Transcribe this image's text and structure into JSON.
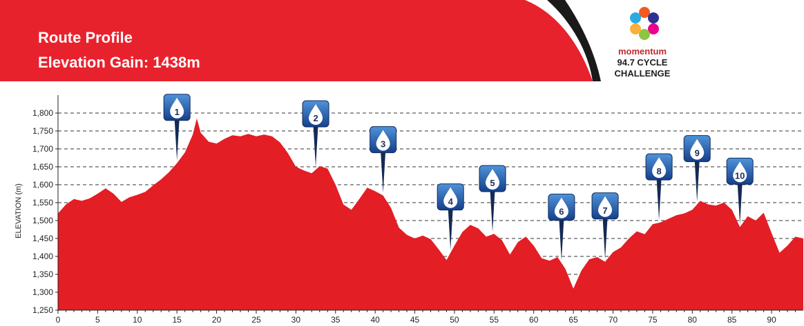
{
  "header": {
    "title_line1": "Route Profile",
    "title_line2": "Elevation Gain: 1438m"
  },
  "logo": {
    "brand": "momentum",
    "line2": "94.7 CYCLE",
    "line3": "CHALLENGE"
  },
  "colors": {
    "header_red": "#e8222d",
    "area_red": "#e31e24",
    "marker_blue": "#1c5aa8"
  },
  "chart_data": {
    "type": "area",
    "title": "",
    "xlabel": "",
    "ylabel": "ELEVATION (m)",
    "xlim": [
      0,
      94
    ],
    "ylim": [
      1250,
      1800
    ],
    "xticks": [
      0,
      5,
      10,
      15,
      20,
      25,
      30,
      35,
      40,
      45,
      50,
      55,
      60,
      65,
      70,
      75,
      80,
      85,
      90
    ],
    "yticks": [
      1250,
      1300,
      1350,
      1400,
      1450,
      1500,
      1550,
      1600,
      1650,
      1700,
      1750,
      1800
    ],
    "xtick_labels": [
      "0",
      "5",
      "10",
      "15",
      "20",
      "25",
      "30",
      "35",
      "40",
      "45",
      "50",
      "55",
      "60",
      "65",
      "70",
      "75",
      "80",
      "85",
      "90"
    ],
    "ytick_labels": [
      "1,250",
      "1,300",
      "1,350",
      "1,400",
      "1,450",
      "1,500",
      "1,550",
      "1,600",
      "1,650",
      "1,700",
      "1,750",
      "1,800"
    ],
    "grid": "horizontal-dashed",
    "series": [
      {
        "x": [
          0,
          1,
          2,
          3,
          4,
          5,
          6,
          7,
          8,
          9,
          10,
          11,
          12,
          13,
          14,
          15,
          16,
          17,
          17.5,
          18,
          19,
          20,
          21,
          22,
          23,
          24,
          25,
          26,
          27,
          28,
          29,
          30,
          31,
          32,
          33,
          34,
          35,
          36,
          37,
          38,
          39,
          40,
          41,
          42,
          43,
          44,
          45,
          46,
          47,
          48,
          49,
          50,
          51,
          52,
          53,
          54,
          55,
          56,
          57,
          58,
          59,
          60,
          61,
          62,
          63,
          64,
          65,
          66,
          67,
          68,
          69,
          70,
          71,
          72,
          73,
          74,
          75,
          76,
          77,
          78,
          79,
          80,
          81,
          82,
          83,
          84,
          85,
          86,
          87,
          88,
          89,
          90,
          91,
          92,
          93,
          94
        ],
        "y": [
          1520,
          1545,
          1560,
          1555,
          1562,
          1575,
          1590,
          1575,
          1552,
          1565,
          1572,
          1580,
          1598,
          1615,
          1635,
          1660,
          1690,
          1740,
          1785,
          1745,
          1720,
          1715,
          1728,
          1738,
          1735,
          1742,
          1735,
          1740,
          1735,
          1718,
          1688,
          1650,
          1640,
          1632,
          1652,
          1645,
          1600,
          1545,
          1530,
          1560,
          1592,
          1582,
          1570,
          1535,
          1480,
          1460,
          1450,
          1458,
          1448,
          1420,
          1390,
          1430,
          1468,
          1488,
          1478,
          1455,
          1463,
          1445,
          1405,
          1440,
          1455,
          1430,
          1395,
          1388,
          1398,
          1365,
          1310,
          1360,
          1392,
          1398,
          1385,
          1412,
          1425,
          1450,
          1470,
          1462,
          1490,
          1495,
          1505,
          1515,
          1520,
          1530,
          1555,
          1545,
          1542,
          1550,
          1530,
          1482,
          1512,
          1500,
          1522,
          1465,
          1410,
          1430,
          1455,
          1450
        ]
      }
    ],
    "waypoints": [
      {
        "label": "1",
        "x": 15
      },
      {
        "label": "2",
        "x": 32.5
      },
      {
        "label": "3",
        "x": 41
      },
      {
        "label": "4",
        "x": 49.5
      },
      {
        "label": "5",
        "x": 54.8
      },
      {
        "label": "6",
        "x": 63.5
      },
      {
        "label": "7",
        "x": 69
      },
      {
        "label": "8",
        "x": 75.8
      },
      {
        "label": "9",
        "x": 80.6
      },
      {
        "label": "10",
        "x": 86
      }
    ]
  }
}
